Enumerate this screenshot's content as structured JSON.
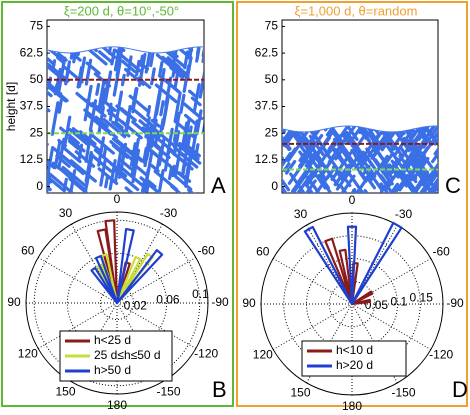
{
  "chart_data": [
    {
      "type": "deposit",
      "title": "ξ=200 d, θ=10°,-50°",
      "title_color": "#5fb832",
      "ylabel": "height [d]",
      "label": "A",
      "ylim": [
        -3,
        78
      ],
      "yticks": [
        0,
        12.5,
        25,
        37.5,
        50,
        62.5,
        75
      ],
      "front_height": 64,
      "branch_angles": [
        10,
        -50
      ],
      "color": "#3b6fe6",
      "hlines": [
        {
          "value": 50,
          "color": "#8b1a1a"
        },
        {
          "value": 25,
          "color": "#7ed957"
        }
      ]
    },
    {
      "type": "deposit",
      "title": "ξ=1,000 d, θ=random",
      "title_color": "#f0a030",
      "ylabel": "",
      "label": "C",
      "ylim": [
        -3,
        78
      ],
      "yticks": [
        0,
        12.5,
        25,
        37.5,
        50,
        62.5,
        75
      ],
      "front_height": 27,
      "branch_angles": [
        35,
        -35
      ],
      "color": "#3b6fe6",
      "hlines": [
        {
          "value": 20,
          "color": "#8b1a1a"
        },
        {
          "value": 8,
          "color": "#7ed957"
        }
      ]
    },
    {
      "type": "polar",
      "label": "B",
      "rlim": [
        0,
        0.11
      ],
      "rticks": [
        0.02,
        0.06,
        0.1
      ],
      "thetaticks": [
        0,
        -30,
        -60,
        -90,
        -120,
        -150,
        180,
        150,
        120,
        90,
        60,
        30
      ],
      "series": [
        {
          "name": "h<25 d",
          "color": "#8b1a1a",
          "theta": [
            5,
            12,
            -15,
            20
          ],
          "values": [
            0.1,
            0.09,
            0.05,
            0.04
          ]
        },
        {
          "name": "25 d≤h≤50 d",
          "color": "#c8dc3c",
          "theta": [
            -35,
            -25,
            25,
            15
          ],
          "values": [
            0.07,
            0.06,
            0.05,
            0.06
          ]
        },
        {
          "name": "h>50 d",
          "color": "#1f3fd0",
          "theta": [
            -40,
            -10,
            22,
            35
          ],
          "values": [
            0.08,
            0.09,
            0.06,
            0.05
          ]
        }
      ]
    },
    {
      "type": "polar",
      "label": "D",
      "rlim": [
        0,
        0.2
      ],
      "rticks": [
        0.05,
        0.1,
        0.15
      ],
      "thetaticks": [
        0,
        -30,
        -60,
        -90,
        -120,
        -150,
        180,
        150,
        120,
        90,
        60,
        30
      ],
      "series": [
        {
          "name": "h<10 d",
          "color": "#8b1a1a",
          "theta": [
            20,
            10,
            -5,
            -60,
            -80
          ],
          "values": [
            0.15,
            0.12,
            0.09,
            0.05,
            0.04
          ]
        },
        {
          "name": "h>20 d",
          "color": "#1f3fd0",
          "theta": [
            0,
            -30,
            30
          ],
          "values": [
            0.17,
            0.2,
            0.19
          ]
        }
      ]
    }
  ]
}
